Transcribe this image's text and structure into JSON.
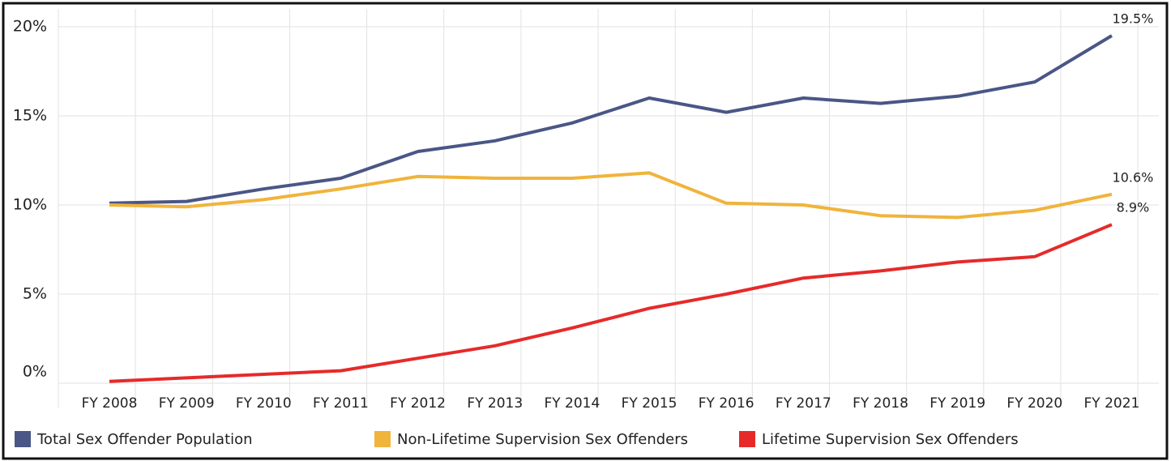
{
  "chart_data": {
    "type": "line",
    "categories": [
      "FY 2008",
      "FY 2009",
      "FY 2010",
      "FY 2011",
      "FY 2012",
      "FY 2013",
      "FY 2014",
      "FY 2015",
      "FY 2016",
      "FY 2017",
      "FY 2018",
      "FY 2019",
      "FY 2020",
      "FY 2021"
    ],
    "series": [
      {
        "name": "Total Sex Offender Population",
        "color": "#4a5686",
        "values": [
          10.1,
          10.2,
          10.9,
          11.5,
          13.0,
          13.6,
          14.6,
          16.0,
          15.2,
          16.0,
          15.7,
          16.1,
          16.9,
          19.5
        ],
        "value_labels": [
          null,
          null,
          null,
          null,
          null,
          null,
          null,
          null,
          null,
          null,
          null,
          null,
          null,
          "19.5%"
        ]
      },
      {
        "name": "Non-Lifetime Supervision Sex Offenders",
        "color": "#f0b43c",
        "values": [
          10.0,
          9.9,
          10.3,
          10.9,
          11.6,
          11.5,
          11.5,
          11.8,
          10.1,
          10.0,
          9.4,
          9.3,
          9.7,
          10.6
        ],
        "value_labels": [
          null,
          null,
          null,
          null,
          null,
          null,
          null,
          null,
          null,
          null,
          null,
          null,
          null,
          "10.6%"
        ]
      },
      {
        "name": "Lifetime Supervision Sex Offenders",
        "color": "#e62a2a",
        "values": [
          0.1,
          0.3,
          0.5,
          0.7,
          1.4,
          2.1,
          3.1,
          4.2,
          5.0,
          5.9,
          6.3,
          6.8,
          7.1,
          8.9
        ],
        "value_labels": [
          null,
          null,
          null,
          null,
          null,
          null,
          null,
          null,
          null,
          null,
          null,
          null,
          null,
          "8.9%"
        ]
      }
    ],
    "ylim": [
      0,
      21
    ],
    "yticks": [
      {
        "value": 0,
        "label": "0%"
      },
      {
        "value": 5,
        "label": "5%"
      },
      {
        "value": 10,
        "label": "10%"
      },
      {
        "value": 15,
        "label": "15%"
      },
      {
        "value": 20,
        "label": "20%"
      }
    ],
    "grid": true,
    "legend": "bottom"
  }
}
